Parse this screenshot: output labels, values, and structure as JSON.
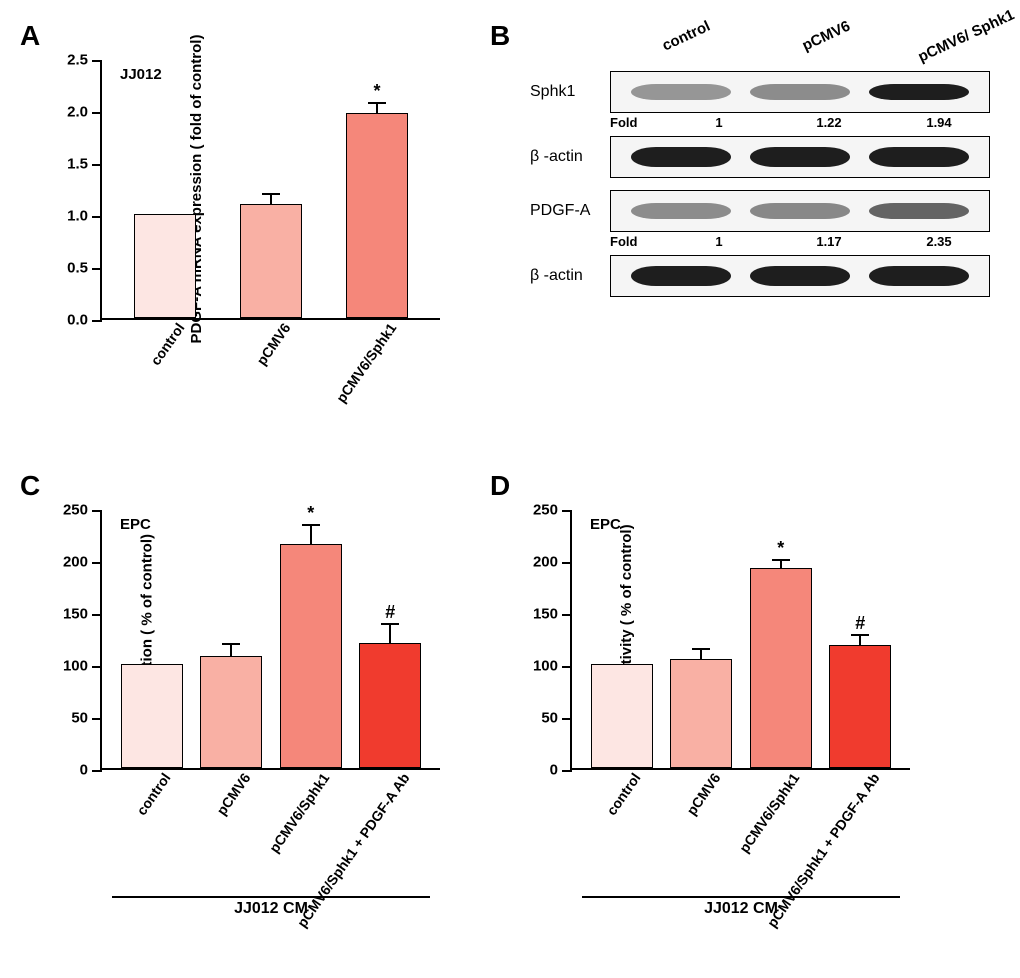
{
  "panelA": {
    "letter": "A",
    "inner_title": "JJ012",
    "ylabel": "PDGF-A mRNA expression ( fold of control)",
    "ymax": 2.5,
    "ytick_step": 0.5,
    "categories": [
      "control",
      "pCMV6",
      "pCMV6/Sphk1"
    ],
    "values": [
      1.0,
      1.1,
      1.97
    ],
    "errors": [
      0,
      0.1,
      0.11
    ],
    "sig": [
      "",
      "",
      "*"
    ],
    "bar_colors": [
      "#fde6e3",
      "#f9b0a4",
      "#f5877a"
    ]
  },
  "panelB": {
    "letter": "B",
    "lane_labels": [
      "control",
      "pCMV6",
      "pCMV6/ Sphk1"
    ],
    "rows": [
      {
        "label": "Sphk1",
        "intensities": [
          0.35,
          0.4,
          0.95
        ],
        "height": 16
      },
      {
        "fold_label": "Fold",
        "folds": [
          "1",
          "1.22",
          "1.94"
        ]
      },
      {
        "label": "β -actin",
        "intensities": [
          0.95,
          0.95,
          0.95
        ],
        "height": 20
      },
      {
        "spacer": 10
      },
      {
        "label": "PDGF-A",
        "intensities": [
          0.4,
          0.42,
          0.6
        ],
        "height": 16
      },
      {
        "fold_label": "Fold",
        "folds": [
          "1",
          "1.17",
          "2.35"
        ]
      },
      {
        "label": "β -actin",
        "intensities": [
          0.95,
          0.95,
          0.95
        ],
        "height": 20
      }
    ]
  },
  "panelC": {
    "letter": "C",
    "inner_title": "EPC",
    "ylabel": "tube formation ( % of control)",
    "ymax": 250,
    "ytick_step": 50,
    "categories": [
      "control",
      "pCMV6",
      "pCMV6/Sphk1",
      "pCMV6/Sphk1\n+ PDGF-A Ab"
    ],
    "values": [
      100,
      108,
      215,
      120
    ],
    "errors": [
      0,
      12,
      20,
      19
    ],
    "sig": [
      "",
      "",
      "*",
      "#"
    ],
    "bar_colors": [
      "#fde6e3",
      "#f9b0a4",
      "#f5877a",
      "#f03b2e"
    ],
    "xaxis_title": "JJ012 CM"
  },
  "panelD": {
    "letter": "D",
    "inner_title": "EPC",
    "ylabel": "migration activity ( % of control)",
    "ymax": 250,
    "ytick_step": 50,
    "categories": [
      "control",
      "pCMV6",
      "pCMV6/Sphk1",
      "pCMV6/Sphk1\n+ PDGF-A Ab"
    ],
    "values": [
      100,
      105,
      192,
      118
    ],
    "errors": [
      0,
      10,
      9,
      11
    ],
    "sig": [
      "",
      "",
      "*",
      "#"
    ],
    "bar_colors": [
      "#fde6e3",
      "#f9b0a4",
      "#f5877a",
      "#f03b2e"
    ],
    "xaxis_title": "JJ012 CM"
  }
}
